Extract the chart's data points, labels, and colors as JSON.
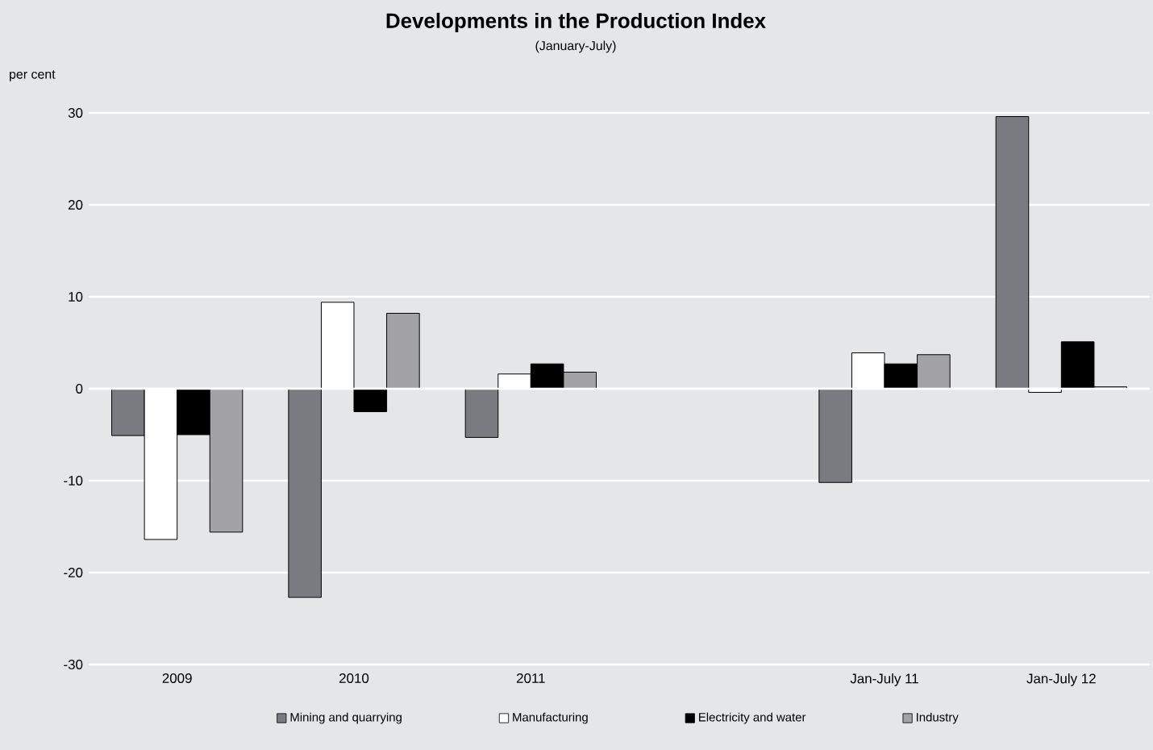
{
  "chart_data": {
    "type": "bar",
    "title": "Developments in the Production Index",
    "subtitle": "(January-July)",
    "ylabel": "per cent",
    "categories": [
      "2009",
      "2010",
      "2011",
      null,
      "Jan-July 11",
      "Jan-July 12"
    ],
    "series": [
      {
        "name": "Mining and quarrying",
        "color": "#7a7b80",
        "values": [
          -5.1,
          -22.7,
          -5.3,
          null,
          -10.2,
          29.6
        ]
      },
      {
        "name": "Manufacturing",
        "color": "#ffffff",
        "values": [
          -16.4,
          9.4,
          1.6,
          null,
          3.9,
          -0.4
        ]
      },
      {
        "name": "Electricity and water",
        "color": "#000000",
        "values": [
          -5.0,
          -2.5,
          2.7,
          null,
          2.7,
          5.1
        ]
      },
      {
        "name": "Industry",
        "color": "#a3a3a5",
        "values": [
          -15.6,
          8.2,
          1.8,
          null,
          3.7,
          0.2
        ]
      }
    ],
    "ylim": [
      -30,
      30
    ],
    "yticks": [
      -30,
      -20,
      -10,
      0,
      10,
      20,
      30
    ],
    "grid": "y",
    "legend": "bottom"
  }
}
